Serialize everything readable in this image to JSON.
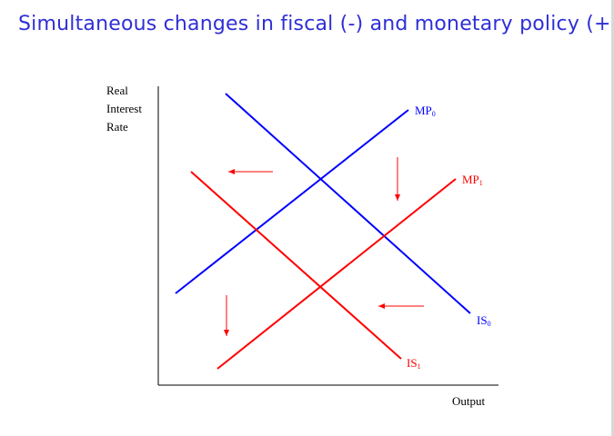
{
  "slide": {
    "title": "Simultaneous changes in fiscal (-) and monetary policy (+)"
  },
  "diagram": {
    "y_axis_label": [
      "Real",
      "Interest",
      "Rate"
    ],
    "x_axis_label": "Output",
    "curves": [
      {
        "label_main": "MP",
        "label_sub": "0",
        "color": "#0000ff"
      },
      {
        "label_main": "MP",
        "label_sub": "1",
        "color": "#ff0000"
      },
      {
        "label_main": "IS",
        "label_sub": "0",
        "color": "#0000ff"
      },
      {
        "label_main": "IS",
        "label_sub": "1",
        "color": "#ff0000"
      }
    ],
    "arrow_color": "#ff0000"
  }
}
